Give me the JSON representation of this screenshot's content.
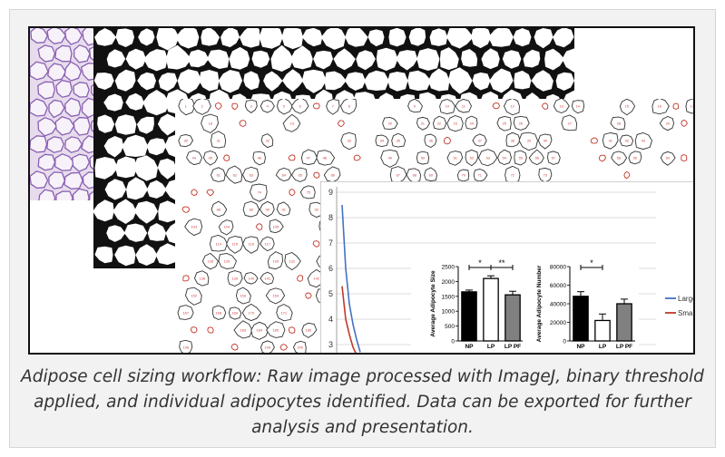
{
  "caption": "Adipose cell sizing workflow: Raw image processed with ImageJ, binary threshold applied, and individual adipocytes identified. Data can be exported for further analysis and presentation.",
  "colors": {
    "large_line": "#4472c4",
    "small_line": "#c0392b",
    "histology_bg": "#e6dcec",
    "histology_stain": "#8a5fb3",
    "cell_label": "#d04040"
  },
  "chart_data": [
    {
      "type": "line",
      "yticks": [
        "9",
        "8",
        "7",
        "6",
        "5",
        "4",
        "3"
      ],
      "ylim": [
        3,
        9
      ],
      "series": [
        {
          "name": "Large",
          "color": "#4472c4",
          "x": [
            0,
            1,
            2,
            3,
            4,
            5
          ],
          "y": [
            8.5,
            6.0,
            4.6,
            3.8,
            3.2,
            2.7
          ]
        },
        {
          "name": "Small",
          "color": "#c0392b",
          "x": [
            0,
            1,
            2,
            3,
            4,
            5
          ],
          "y": [
            5.3,
            4.0,
            3.4,
            2.9,
            2.6,
            2.4
          ]
        }
      ],
      "legend": "right"
    },
    {
      "type": "bar",
      "ylabel": "Average Adipocyte Size",
      "categories": [
        "NP",
        "LP",
        "LP PF"
      ],
      "values": [
        1650,
        2100,
        1550
      ],
      "errors": [
        60,
        90,
        120
      ],
      "fills": [
        "#000000",
        "#ffffff",
        "#808080"
      ],
      "yticks": [
        "2500",
        "2000",
        "1500",
        "1000",
        "500",
        "0"
      ],
      "ylim": [
        0,
        2500
      ],
      "significance": [
        {
          "from": 0,
          "to": 1,
          "label": "*"
        },
        {
          "from": 1,
          "to": 2,
          "label": "**"
        }
      ]
    },
    {
      "type": "bar",
      "ylabel": "Average Adipocyte Number",
      "categories": [
        "NP",
        "LP",
        "LP PF"
      ],
      "values": [
        48000,
        22000,
        40000
      ],
      "errors": [
        5000,
        7000,
        5000
      ],
      "fills": [
        "#000000",
        "#ffffff",
        "#808080"
      ],
      "yticks": [
        "80000",
        "60000",
        "40000",
        "20000",
        "0"
      ],
      "ylim": [
        0,
        80000
      ],
      "significance": [
        {
          "from": 0,
          "to": 1,
          "label": "*"
        }
      ]
    }
  ]
}
